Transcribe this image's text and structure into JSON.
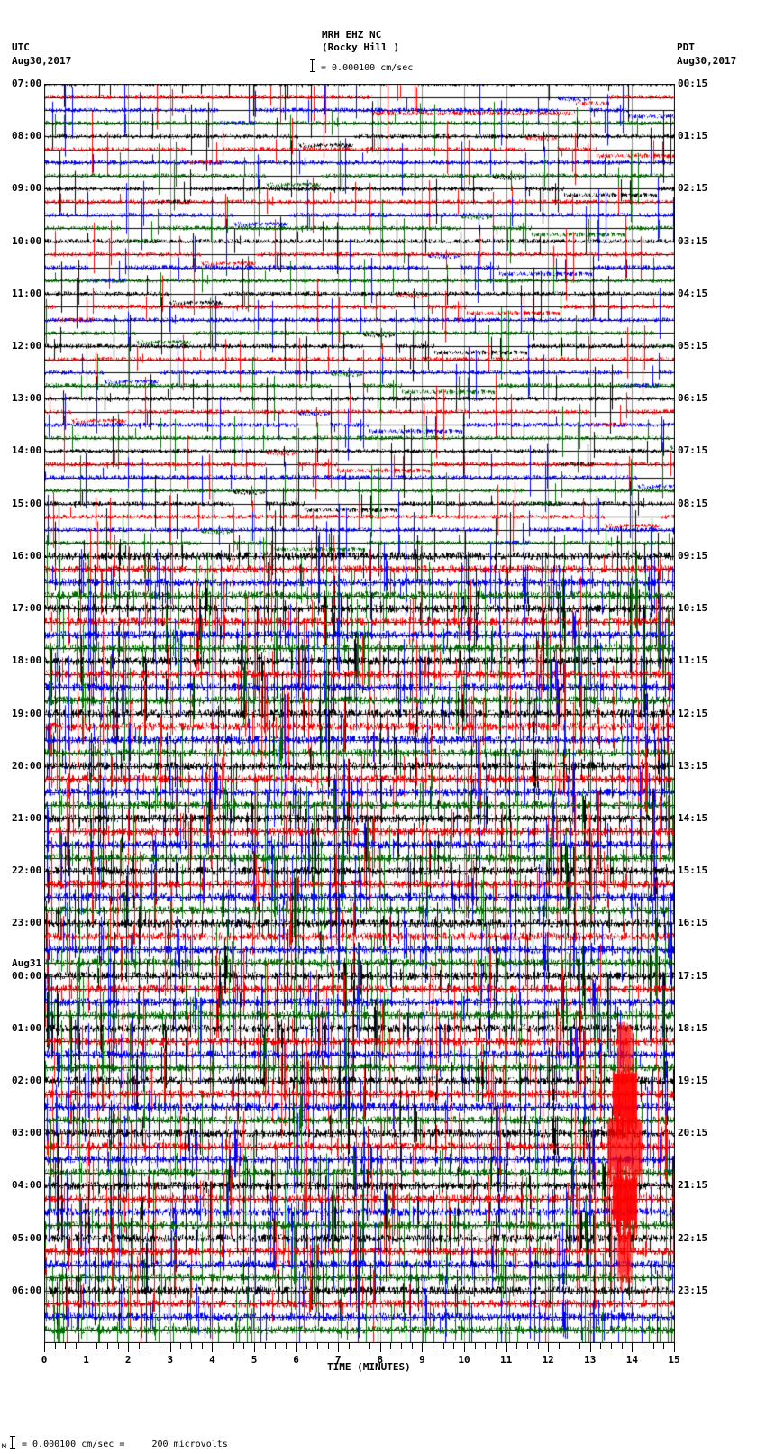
{
  "header": {
    "station": "MRH EHZ NC",
    "location": "(Rocky Hill )",
    "scale_text": "= 0.000100 cm/sec",
    "left_tz": "UTC",
    "left_date": "Aug30,2017",
    "right_tz": "PDT",
    "right_date": "Aug30,2017"
  },
  "footer": {
    "scale_prefix": "м",
    "scale_text": "= 0.000100 cm/sec =     200 microvolts"
  },
  "chart_data": {
    "type": "line",
    "title": "MRH EHZ NC (Rocky Hill )",
    "xlabel": "TIME (MINUTES)",
    "ylabel": "",
    "xlim": [
      0,
      15
    ],
    "x_ticks": [
      "0",
      "1",
      "2",
      "3",
      "4",
      "5",
      "6",
      "7",
      "8",
      "9",
      "10",
      "11",
      "12",
      "13",
      "14",
      "15"
    ],
    "trace_colors": [
      "#000000",
      "#ff0000",
      "#0000ff",
      "#007000"
    ],
    "traces_per_hour": 4,
    "minutes_per_trace": 15,
    "left_labels": [
      {
        "hour_index": 0,
        "text": "07:00"
      },
      {
        "hour_index": 1,
        "text": "08:00"
      },
      {
        "hour_index": 2,
        "text": "09:00"
      },
      {
        "hour_index": 3,
        "text": "10:00"
      },
      {
        "hour_index": 4,
        "text": "11:00"
      },
      {
        "hour_index": 5,
        "text": "12:00"
      },
      {
        "hour_index": 6,
        "text": "13:00"
      },
      {
        "hour_index": 7,
        "text": "14:00"
      },
      {
        "hour_index": 8,
        "text": "15:00"
      },
      {
        "hour_index": 9,
        "text": "16:00"
      },
      {
        "hour_index": 10,
        "text": "17:00"
      },
      {
        "hour_index": 11,
        "text": "18:00"
      },
      {
        "hour_index": 12,
        "text": "19:00"
      },
      {
        "hour_index": 13,
        "text": "20:00"
      },
      {
        "hour_index": 14,
        "text": "21:00"
      },
      {
        "hour_index": 15,
        "text": "22:00"
      },
      {
        "hour_index": 16,
        "text": "23:00"
      },
      {
        "hour_index": 17,
        "text": "00:00",
        "date": "Aug31"
      },
      {
        "hour_index": 18,
        "text": "01:00"
      },
      {
        "hour_index": 19,
        "text": "02:00"
      },
      {
        "hour_index": 20,
        "text": "03:00"
      },
      {
        "hour_index": 21,
        "text": "04:00"
      },
      {
        "hour_index": 22,
        "text": "05:00"
      },
      {
        "hour_index": 23,
        "text": "06:00"
      }
    ],
    "right_labels": [
      "00:15",
      "01:15",
      "02:15",
      "03:15",
      "04:15",
      "05:15",
      "06:15",
      "07:15",
      "08:15",
      "09:15",
      "10:15",
      "11:15",
      "12:15",
      "13:15",
      "14:15",
      "15:15",
      "16:15",
      "17:15",
      "18:15",
      "19:15",
      "20:15",
      "21:15",
      "22:15",
      "23:15"
    ],
    "notable_events": [
      {
        "description": "large red-trace event",
        "minute_start": 13.4,
        "minute_end": 14.2,
        "utc_hours": [
          "01:00",
          "05:00"
        ],
        "peak_utc": "03:00"
      }
    ],
    "noise_level": {
      "quiet_hours": [
        "07:00",
        "15:00"
      ],
      "noisy_hours": [
        "16:00",
        "06:00"
      ]
    }
  }
}
